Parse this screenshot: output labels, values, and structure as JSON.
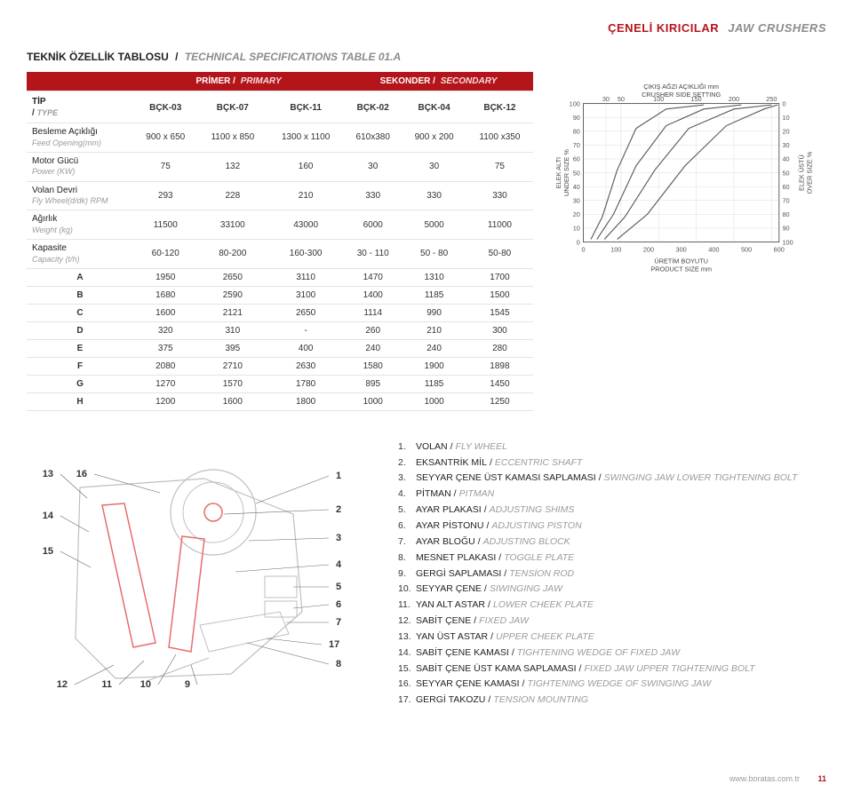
{
  "colors": {
    "accent": "#b4151b",
    "muted": "#8c8c8c",
    "text": "#333333",
    "grid": "#e4e4e4",
    "white": "#ffffff",
    "diag_red": "#e86c6c",
    "diag_grey": "#bfbfbf"
  },
  "category": {
    "tr": "ÇENELİ KIRICILAR",
    "en": "JAW CRUSHERS"
  },
  "title": {
    "tr": "TEKNİK ÖZELLİK TABLOSU",
    "sep": "/",
    "en": "TECHNICAL SPECIFICATIONS TABLE 01.A"
  },
  "table": {
    "groups": [
      {
        "tr": "PRİMER",
        "en": "PRIMARY",
        "span": 3
      },
      {
        "tr": "SEKONDER",
        "en": "SECONDARY",
        "span": 3
      }
    ],
    "type_label": {
      "tr": "TİP",
      "en": "TYPE"
    },
    "models": [
      "BÇK-03",
      "BÇK-07",
      "BÇK-11",
      "BÇK-02",
      "BÇK-04",
      "BÇK-12"
    ],
    "spec_rows": [
      {
        "tr": "Besleme Açıklığı",
        "en": "Feed Opening(mm)",
        "vals": [
          "900 x 650",
          "1100 x 850",
          "1300 x 1100",
          "610x380",
          "900 x 200",
          "1100 x350"
        ]
      },
      {
        "tr": "Motor Gücü",
        "en": "Power (KW)",
        "vals": [
          "75",
          "132",
          "160",
          "30",
          "30",
          "75"
        ]
      },
      {
        "tr": "Volan Devri",
        "en": "Fly Wheel(d/dk) RPM",
        "vals": [
          "293",
          "228",
          "210",
          "330",
          "330",
          "330"
        ]
      },
      {
        "tr": "Ağırlık",
        "en": "Weight (kg)",
        "vals": [
          "11500",
          "33100",
          "43000",
          "6000",
          "5000",
          "11000"
        ]
      },
      {
        "tr": "Kapasite",
        "en": "Capacity (t/h)",
        "vals": [
          "60-120",
          "80-200",
          "160-300",
          "30 - 110",
          "50 - 80",
          "50-80"
        ]
      }
    ],
    "dim_rows": [
      {
        "k": "A",
        "vals": [
          "1950",
          "2650",
          "3110",
          "1470",
          "1310",
          "1700"
        ]
      },
      {
        "k": "B",
        "vals": [
          "1680",
          "2590",
          "3100",
          "1400",
          "1185",
          "1500"
        ]
      },
      {
        "k": "C",
        "vals": [
          "1600",
          "2121",
          "2650",
          "1114",
          "990",
          "1545"
        ]
      },
      {
        "k": "D",
        "vals": [
          "320",
          "310",
          "-",
          "260",
          "210",
          "300"
        ]
      },
      {
        "k": "E",
        "vals": [
          "375",
          "395",
          "400",
          "240",
          "240",
          "280"
        ]
      },
      {
        "k": "F",
        "vals": [
          "2080",
          "2710",
          "2630",
          "1580",
          "1900",
          "1898"
        ]
      },
      {
        "k": "G",
        "vals": [
          "1270",
          "1570",
          "1780",
          "895",
          "1185",
          "1450"
        ]
      },
      {
        "k": "H",
        "vals": [
          "1200",
          "1600",
          "1800",
          "1000",
          "1000",
          "1250"
        ]
      }
    ]
  },
  "chart": {
    "title_top": "ÇIKIŞ AĞZI AÇIKLIĞI mm",
    "title_top2": "CRUSHER SIDE SETTING",
    "x_ticks": [
      "30",
      "50",
      "100",
      "150",
      "200",
      "250"
    ],
    "y_ticks": [
      "0",
      "10",
      "20",
      "30",
      "40",
      "50",
      "60",
      "70",
      "80",
      "90",
      "100"
    ],
    "x_values": [
      30,
      50,
      100,
      150,
      200,
      250
    ],
    "y_values": [
      0,
      10,
      20,
      30,
      40,
      50,
      60,
      70,
      80,
      90,
      100
    ],
    "xlim": [
      0,
      260
    ],
    "ylim": [
      0,
      100
    ],
    "x_label": {
      "tr": "ÜRETİM BOYUTU",
      "en": "PRODUCT SIZE mm"
    },
    "y_left": {
      "tr": "ELEK ALTI",
      "en": "UNDER SIZE %"
    },
    "y_right": {
      "tr": "ELEK ÜSTÜ",
      "en": "OVER SIZE %"
    },
    "xr_ticks": [
      "0",
      "100",
      "200",
      "300",
      "400",
      "500",
      "600"
    ],
    "yr_values": [
      100,
      90,
      80,
      70,
      60,
      50,
      40,
      30,
      20,
      10,
      0
    ],
    "curves": [
      [
        [
          10,
          2
        ],
        [
          25,
          18
        ],
        [
          45,
          52
        ],
        [
          70,
          82
        ],
        [
          110,
          96
        ],
        [
          160,
          99
        ]
      ],
      [
        [
          18,
          2
        ],
        [
          40,
          20
        ],
        [
          70,
          55
        ],
        [
          110,
          84
        ],
        [
          160,
          96
        ],
        [
          210,
          99
        ]
      ],
      [
        [
          28,
          2
        ],
        [
          55,
          18
        ],
        [
          95,
          52
        ],
        [
          140,
          82
        ],
        [
          200,
          96
        ],
        [
          250,
          99
        ]
      ],
      [
        [
          45,
          2
        ],
        [
          85,
          20
        ],
        [
          135,
          55
        ],
        [
          190,
          84
        ],
        [
          240,
          96
        ],
        [
          258,
          99
        ]
      ]
    ],
    "curve_color": "#555555",
    "grid_color": "#d9d9d9",
    "background": "#ffffff",
    "stroke_width": 1.2,
    "font_size": 8
  },
  "diagram_footer": {
    "url": "www.boratas.com.tr",
    "page": "11"
  },
  "diagram_numbers": [
    "1",
    "2",
    "3",
    "4",
    "5",
    "6",
    "7",
    "8",
    "9",
    "10",
    "11",
    "12",
    "13",
    "14",
    "15",
    "16",
    "17"
  ],
  "legend": [
    {
      "n": "1.",
      "tr": "VOLAN",
      "en": "FLY WHEEL"
    },
    {
      "n": "2.",
      "tr": "EKSANTRİK MİL",
      "en": "ECCENTRIC SHAFT"
    },
    {
      "n": "3.",
      "tr": "SEYYAR ÇENE ÜST KAMASI SAPLAMASI",
      "en": "SWINGING JAW LOWER TIGHTENING BOLT"
    },
    {
      "n": "4.",
      "tr": "PİTMAN",
      "en": "PITMAN"
    },
    {
      "n": "5.",
      "tr": "AYAR PLAKASI",
      "en": "ADJUSTING SHIMS"
    },
    {
      "n": "6.",
      "tr": "AYAR PİSTONU",
      "en": "ADJUSTING PISTON"
    },
    {
      "n": "7.",
      "tr": "AYAR BLOĞU",
      "en": "ADJUSTING BLOCK"
    },
    {
      "n": "8.",
      "tr": "MESNET PLAKASI",
      "en": "TOGGLE PLATE"
    },
    {
      "n": "9.",
      "tr": "GERGİ SAPLAMASI",
      "en": "TENSİON ROD"
    },
    {
      "n": "10.",
      "tr": "SEYYAR ÇENE",
      "en": "SIWINGING JAW"
    },
    {
      "n": "11.",
      "tr": "YAN ALT ASTAR",
      "en": "LOWER CHEEK PLATE"
    },
    {
      "n": "12.",
      "tr": "SABİT ÇENE",
      "en": "FIXED JAW"
    },
    {
      "n": "13.",
      "tr": "YAN ÜST ASTAR",
      "en": "UPPER CHEEK PLATE"
    },
    {
      "n": "14.",
      "tr": "SABİT ÇENE KAMASI",
      "en": "TIGHTENING WEDGE OF FIXED JAW"
    },
    {
      "n": "15.",
      "tr": "SABİT ÇENE ÜST KAMA SAPLAMASI",
      "en": "FIXED JAW UPPER TIGHTENING BOLT"
    },
    {
      "n": "16.",
      "tr": "SEYYAR ÇENE KAMASI",
      "en": "TIGHTENING WEDGE OF SWINGING JAW"
    },
    {
      "n": "17.",
      "tr": "GERGİ TAKOZU",
      "en": "TENSION  MOUNTING"
    }
  ]
}
